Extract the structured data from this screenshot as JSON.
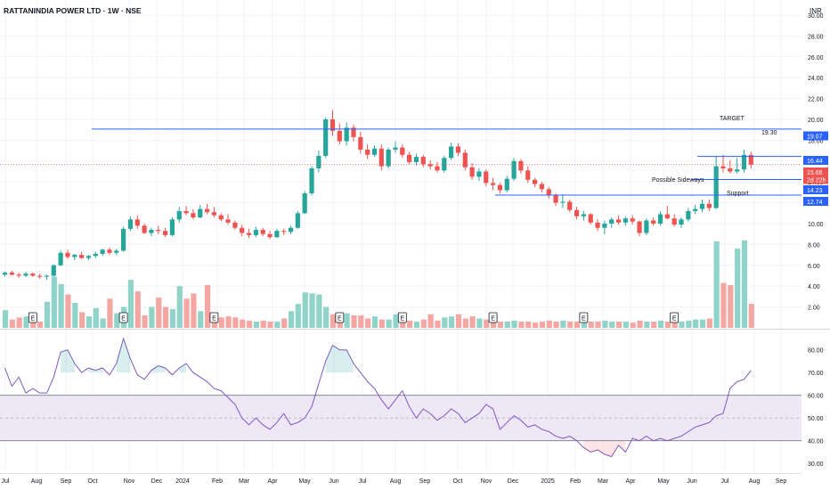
{
  "header": {
    "title": "RATTANINDIA POWER LTD · 1W · NSE",
    "currency": "INR"
  },
  "colors": {
    "up": "#26a69a",
    "down": "#ef5350",
    "up_vol": "#8fd3c9",
    "down_vol": "#f4a6a2",
    "hline": "#2962ff",
    "rsi": "#7e57c2",
    "rsi_band": "#ede7f6",
    "grid": "#f0f3fa",
    "axis_text": "#131722"
  },
  "price_axis": {
    "ticks": [
      "2.00",
      "4.00",
      "6.00",
      "8.00",
      "10.00",
      "12.00",
      "14.00",
      "16.00",
      "18.00",
      "20.00",
      "22.00",
      "24.00",
      "26.00",
      "28.00",
      "30.00"
    ]
  },
  "rsi_axis": {
    "ticks": [
      "30.00",
      "40.00",
      "50.00",
      "60.00",
      "70.00",
      "80.00"
    ]
  },
  "time_axis": {
    "labels": [
      "Jul",
      "Aug",
      "Sep",
      "Oct",
      "Nov",
      "Dec",
      "2024",
      "Feb",
      "Mar",
      "Apr",
      "May",
      "Jun",
      "Jul",
      "Aug",
      "Sep",
      "Oct",
      "Nov",
      "Dec",
      "2025",
      "Feb",
      "Mar",
      "Apr",
      "May",
      "Jun",
      "Jul",
      "Aug",
      "Sep"
    ]
  },
  "annotations": {
    "target": "TARGET",
    "target_value": "19.30",
    "sideways": "Possible Sideways",
    "support": "Support"
  },
  "price_badges": [
    {
      "text": "19.07",
      "kind": "line"
    },
    {
      "text": "16.44",
      "kind": "line"
    },
    {
      "text": "15.66",
      "kind": "last"
    },
    {
      "text": "2d 22h",
      "kind": "countdown"
    },
    {
      "text": "14.23",
      "kind": "line"
    },
    {
      "text": "12.74",
      "kind": "line"
    }
  ],
  "earnings_marker": "E",
  "chart_data": {
    "type": "candlestick",
    "start_week": "2023-06-26",
    "price_ylim": [
      0,
      30.5
    ],
    "horizontal_levels": [
      19.07,
      16.44,
      14.23,
      12.74
    ],
    "last_price": 15.66,
    "candles": [
      [
        5.1,
        5.4,
        4.9,
        5.3
      ],
      [
        5.3,
        5.5,
        5.0,
        5.1
      ],
      [
        5.1,
        5.3,
        4.8,
        5.0
      ],
      [
        5.0,
        5.4,
        4.9,
        5.2
      ],
      [
        5.2,
        5.3,
        4.9,
        5.0
      ],
      [
        5.0,
        5.2,
        4.7,
        4.9
      ],
      [
        4.9,
        5.1,
        4.6,
        5.0
      ],
      [
        5.0,
        6.1,
        4.9,
        6.0
      ],
      [
        6.0,
        7.4,
        5.9,
        7.2
      ],
      [
        7.2,
        7.5,
        6.6,
        6.8
      ],
      [
        6.8,
        7.1,
        6.5,
        7.0
      ],
      [
        7.0,
        7.3,
        6.6,
        6.7
      ],
      [
        6.7,
        7.0,
        6.5,
        6.9
      ],
      [
        6.9,
        7.3,
        6.7,
        7.1
      ],
      [
        7.1,
        7.6,
        6.9,
        7.5
      ],
      [
        7.5,
        7.7,
        7.0,
        7.2
      ],
      [
        7.2,
        7.6,
        7.0,
        7.4
      ],
      [
        7.4,
        9.7,
        7.3,
        9.5
      ],
      [
        9.5,
        10.7,
        9.3,
        10.4
      ],
      [
        10.4,
        10.8,
        9.5,
        9.8
      ],
      [
        9.8,
        10.0,
        9.0,
        9.1
      ],
      [
        9.1,
        9.6,
        8.8,
        9.4
      ],
      [
        9.4,
        9.8,
        9.0,
        9.3
      ],
      [
        9.3,
        9.6,
        8.7,
        8.9
      ],
      [
        8.9,
        10.6,
        8.8,
        10.4
      ],
      [
        10.4,
        11.6,
        10.1,
        11.2
      ],
      [
        11.2,
        11.7,
        10.8,
        11.0
      ],
      [
        11.0,
        11.4,
        10.4,
        10.6
      ],
      [
        10.6,
        11.8,
        10.5,
        11.4
      ],
      [
        11.4,
        11.9,
        10.9,
        11.1
      ],
      [
        11.1,
        11.6,
        10.6,
        10.8
      ],
      [
        10.8,
        11.0,
        10.2,
        10.4
      ],
      [
        10.4,
        10.9,
        9.9,
        10.1
      ],
      [
        10.1,
        10.3,
        9.4,
        9.6
      ],
      [
        9.6,
        9.9,
        8.8,
        9.1
      ],
      [
        9.1,
        9.5,
        8.6,
        8.9
      ],
      [
        8.9,
        9.7,
        8.7,
        9.4
      ],
      [
        9.4,
        9.6,
        8.8,
        9.0
      ],
      [
        9.0,
        9.3,
        8.5,
        8.7
      ],
      [
        8.7,
        9.5,
        8.6,
        9.3
      ],
      [
        9.3,
        9.5,
        8.9,
        9.2
      ],
      [
        9.2,
        9.8,
        9.0,
        9.6
      ],
      [
        9.6,
        11.2,
        9.5,
        11.0
      ],
      [
        11.0,
        13.1,
        10.9,
        12.9
      ],
      [
        12.9,
        15.5,
        12.7,
        15.3
      ],
      [
        15.3,
        17.0,
        14.9,
        16.5
      ],
      [
        16.5,
        20.2,
        16.3,
        20.0
      ],
      [
        20.0,
        20.9,
        18.4,
        18.9
      ],
      [
        18.9,
        19.6,
        17.6,
        17.9
      ],
      [
        17.9,
        19.7,
        17.5,
        19.2
      ],
      [
        19.2,
        19.5,
        17.9,
        18.3
      ],
      [
        18.3,
        18.8,
        16.7,
        17.1
      ],
      [
        17.1,
        17.6,
        16.2,
        16.6
      ],
      [
        16.6,
        17.5,
        16.4,
        17.2
      ],
      [
        17.2,
        17.6,
        15.1,
        15.5
      ],
      [
        15.5,
        17.3,
        15.3,
        17.1
      ],
      [
        17.1,
        17.9,
        16.8,
        17.3
      ],
      [
        17.3,
        17.6,
        16.3,
        16.6
      ],
      [
        16.6,
        16.9,
        15.7,
        15.9
      ],
      [
        15.9,
        16.7,
        15.6,
        16.4
      ],
      [
        16.4,
        16.6,
        15.4,
        15.7
      ],
      [
        15.7,
        16.1,
        15.2,
        15.5
      ],
      [
        15.5,
        15.9,
        14.9,
        15.1
      ],
      [
        15.1,
        16.5,
        14.9,
        16.3
      ],
      [
        16.3,
        17.8,
        16.1,
        17.4
      ],
      [
        17.4,
        17.7,
        16.5,
        16.8
      ],
      [
        16.8,
        17.1,
        15.1,
        15.4
      ],
      [
        15.4,
        15.8,
        14.2,
        14.5
      ],
      [
        14.5,
        15.3,
        14.1,
        15.0
      ],
      [
        15.0,
        15.2,
        13.6,
        13.9
      ],
      [
        13.9,
        14.4,
        13.2,
        13.7
      ],
      [
        13.7,
        13.9,
        12.9,
        13.2
      ],
      [
        13.2,
        14.6,
        13.0,
        14.3
      ],
      [
        14.3,
        16.3,
        14.1,
        16.0
      ],
      [
        16.0,
        16.2,
        14.8,
        15.1
      ],
      [
        15.1,
        15.5,
        13.9,
        14.2
      ],
      [
        14.2,
        14.4,
        13.5,
        13.8
      ],
      [
        13.8,
        14.0,
        13.0,
        13.3
      ],
      [
        13.3,
        13.5,
        12.4,
        12.7
      ],
      [
        12.7,
        12.9,
        11.7,
        12.0
      ],
      [
        12.0,
        12.8,
        11.5,
        12.1
      ],
      [
        12.1,
        12.3,
        11.1,
        11.3
      ],
      [
        11.3,
        11.6,
        10.4,
        10.7
      ],
      [
        10.7,
        11.2,
        10.3,
        10.9
      ],
      [
        10.9,
        11.0,
        9.9,
        10.1
      ],
      [
        10.1,
        10.4,
        9.3,
        9.6
      ],
      [
        9.6,
        10.3,
        9.0,
        10.0
      ],
      [
        10.0,
        10.6,
        9.6,
        10.4
      ],
      [
        10.4,
        10.8,
        9.9,
        10.1
      ],
      [
        10.1,
        10.7,
        9.8,
        10.5
      ],
      [
        10.5,
        10.8,
        9.9,
        10.2
      ],
      [
        10.2,
        10.3,
        8.8,
        9.1
      ],
      [
        9.1,
        10.5,
        8.9,
        10.3
      ],
      [
        10.3,
        10.6,
        9.8,
        10.0
      ],
      [
        10.0,
        11.2,
        9.8,
        10.9
      ],
      [
        10.9,
        11.7,
        10.4,
        10.5
      ],
      [
        10.5,
        10.9,
        9.7,
        9.9
      ],
      [
        9.9,
        10.6,
        9.6,
        10.4
      ],
      [
        10.4,
        11.5,
        10.2,
        11.2
      ],
      [
        11.2,
        11.8,
        10.9,
        11.4
      ],
      [
        11.4,
        12.3,
        11.1,
        11.9
      ],
      [
        11.9,
        12.3,
        11.2,
        11.5
      ],
      [
        11.5,
        16.5,
        11.4,
        15.5
      ],
      [
        15.5,
        16.6,
        14.9,
        15.3
      ],
      [
        15.3,
        16.1,
        14.8,
        15.0
      ],
      [
        15.0,
        16.3,
        14.8,
        15.2
      ],
      [
        15.2,
        17.1,
        14.9,
        16.6
      ],
      [
        16.6,
        16.9,
        15.3,
        15.66
      ]
    ],
    "volume_ylim": [
      0,
      9.0
    ],
    "volume": [
      1.7,
      0.8,
      1.0,
      1.1,
      0.9,
      0.6,
      2.5,
      4.9,
      4.2,
      3.2,
      2.4,
      1.5,
      1.1,
      1.9,
      0.9,
      2.8,
      1.4,
      2.0,
      4.6,
      3.5,
      1.2,
      2.0,
      2.9,
      2.0,
      1.8,
      4.0,
      2.8,
      3.3,
      1.6,
      4.1,
      1.3,
      1.0,
      1.1,
      1.0,
      0.8,
      0.7,
      0.6,
      0.7,
      0.6,
      0.6,
      0.9,
      1.6,
      2.3,
      3.4,
      3.3,
      3.2,
      2.0,
      1.3,
      1.3,
      1.4,
      1.2,
      1.2,
      0.9,
      1.1,
      0.8,
      0.8,
      1.3,
      0.8,
      0.7,
      0.6,
      0.8,
      1.3,
      0.7,
      1.0,
      1.1,
      1.3,
      0.9,
      1.1,
      0.9,
      0.8,
      0.7,
      0.6,
      0.6,
      0.7,
      0.6,
      0.6,
      0.5,
      0.6,
      0.7,
      0.6,
      0.7,
      0.6,
      0.6,
      0.7,
      0.6,
      0.6,
      0.7,
      0.6,
      0.6,
      0.6,
      0.5,
      0.7,
      0.6,
      0.6,
      0.7,
      0.6,
      0.6,
      0.6,
      0.7,
      0.8,
      0.8,
      0.9,
      8.3,
      4.3,
      4.1,
      7.6,
      8.4,
      2.3
    ],
    "earnings_weeks": [
      4,
      17,
      30,
      48,
      57,
      70,
      83,
      96
    ],
    "rsi_ylim": [
      27,
      88
    ],
    "rsi_band": [
      40,
      60
    ],
    "rsi": [
      72,
      64,
      68,
      61,
      63,
      61,
      61,
      68,
      79,
      80,
      74,
      70,
      72,
      71,
      72,
      69,
      74,
      85,
      76,
      69,
      67,
      71,
      73,
      72,
      69,
      72,
      74,
      70,
      68,
      66,
      63,
      62,
      59,
      56,
      50,
      47,
      50,
      47,
      45,
      48,
      52,
      47,
      48,
      50,
      55,
      65,
      75,
      82,
      80,
      80,
      74,
      70,
      66,
      63,
      58,
      54,
      58,
      62,
      55,
      50,
      54,
      52,
      49,
      51,
      54,
      52,
      48,
      50,
      52,
      56,
      54,
      45,
      48,
      51,
      49,
      46,
      47,
      45,
      44,
      42,
      41,
      42,
      40,
      37,
      35,
      36,
      34,
      33,
      38,
      35,
      41,
      40,
      42,
      40,
      41,
      40,
      41,
      42,
      44,
      46,
      47,
      48,
      51,
      52,
      63,
      66,
      67,
      71
    ]
  }
}
